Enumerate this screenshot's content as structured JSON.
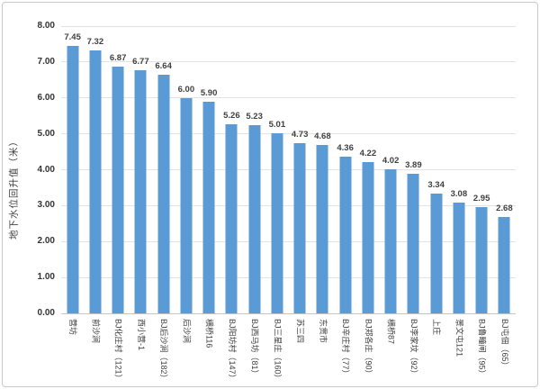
{
  "chart_data": {
    "type": "bar",
    "title": "",
    "xlabel": "",
    "ylabel": "地下水位回升值（米）",
    "ylim": [
      0,
      8
    ],
    "ytick_step": 1,
    "yticks": [
      "0.00",
      "1.00",
      "2.00",
      "3.00",
      "4.00",
      "5.00",
      "6.00",
      "7.00",
      "8.00"
    ],
    "grid": true,
    "legend": false,
    "bar_color": "#5B9BD5",
    "categories": [
      "营坊",
      "前沙涧",
      "BJ化庄村（121）",
      "西小营-1",
      "BJ后沙涧（182）",
      "后沙涧",
      "横桥116",
      "BJ阳坊村（147）",
      "BJ西马坊（81）",
      "BJ三星庄（160）",
      "苏三四",
      "东贯市",
      "BJ辛庄村（77）",
      "BJ郑各庄（90）",
      "横桥87",
      "BJ李家坟（92）",
      "上庄",
      "景文屯121",
      "BJ鲁疃闸（95）",
      "BJ屯佃（65）"
    ],
    "values": [
      7.45,
      7.32,
      6.87,
      6.77,
      6.64,
      6.0,
      5.9,
      5.26,
      5.23,
      5.01,
      4.73,
      4.68,
      4.36,
      4.22,
      4.02,
      3.89,
      3.34,
      3.08,
      2.95,
      2.68
    ],
    "value_labels": [
      "7.45",
      "7.32",
      "6.87",
      "6.77",
      "6.64",
      "6.00",
      "5.90",
      "5.26",
      "5.23",
      "5.01",
      "4.73",
      "4.68",
      "4.36",
      "4.22",
      "4.02",
      "3.89",
      "3.34",
      "3.08",
      "2.95",
      "2.68"
    ]
  },
  "colors": {
    "bar": "#5B9BD5",
    "gridline": "#E3E3E3",
    "axis_line": "#C6C6C6",
    "text": "#3F3F3F",
    "border": "#C9C9C9",
    "background": "#FFFFFF"
  }
}
